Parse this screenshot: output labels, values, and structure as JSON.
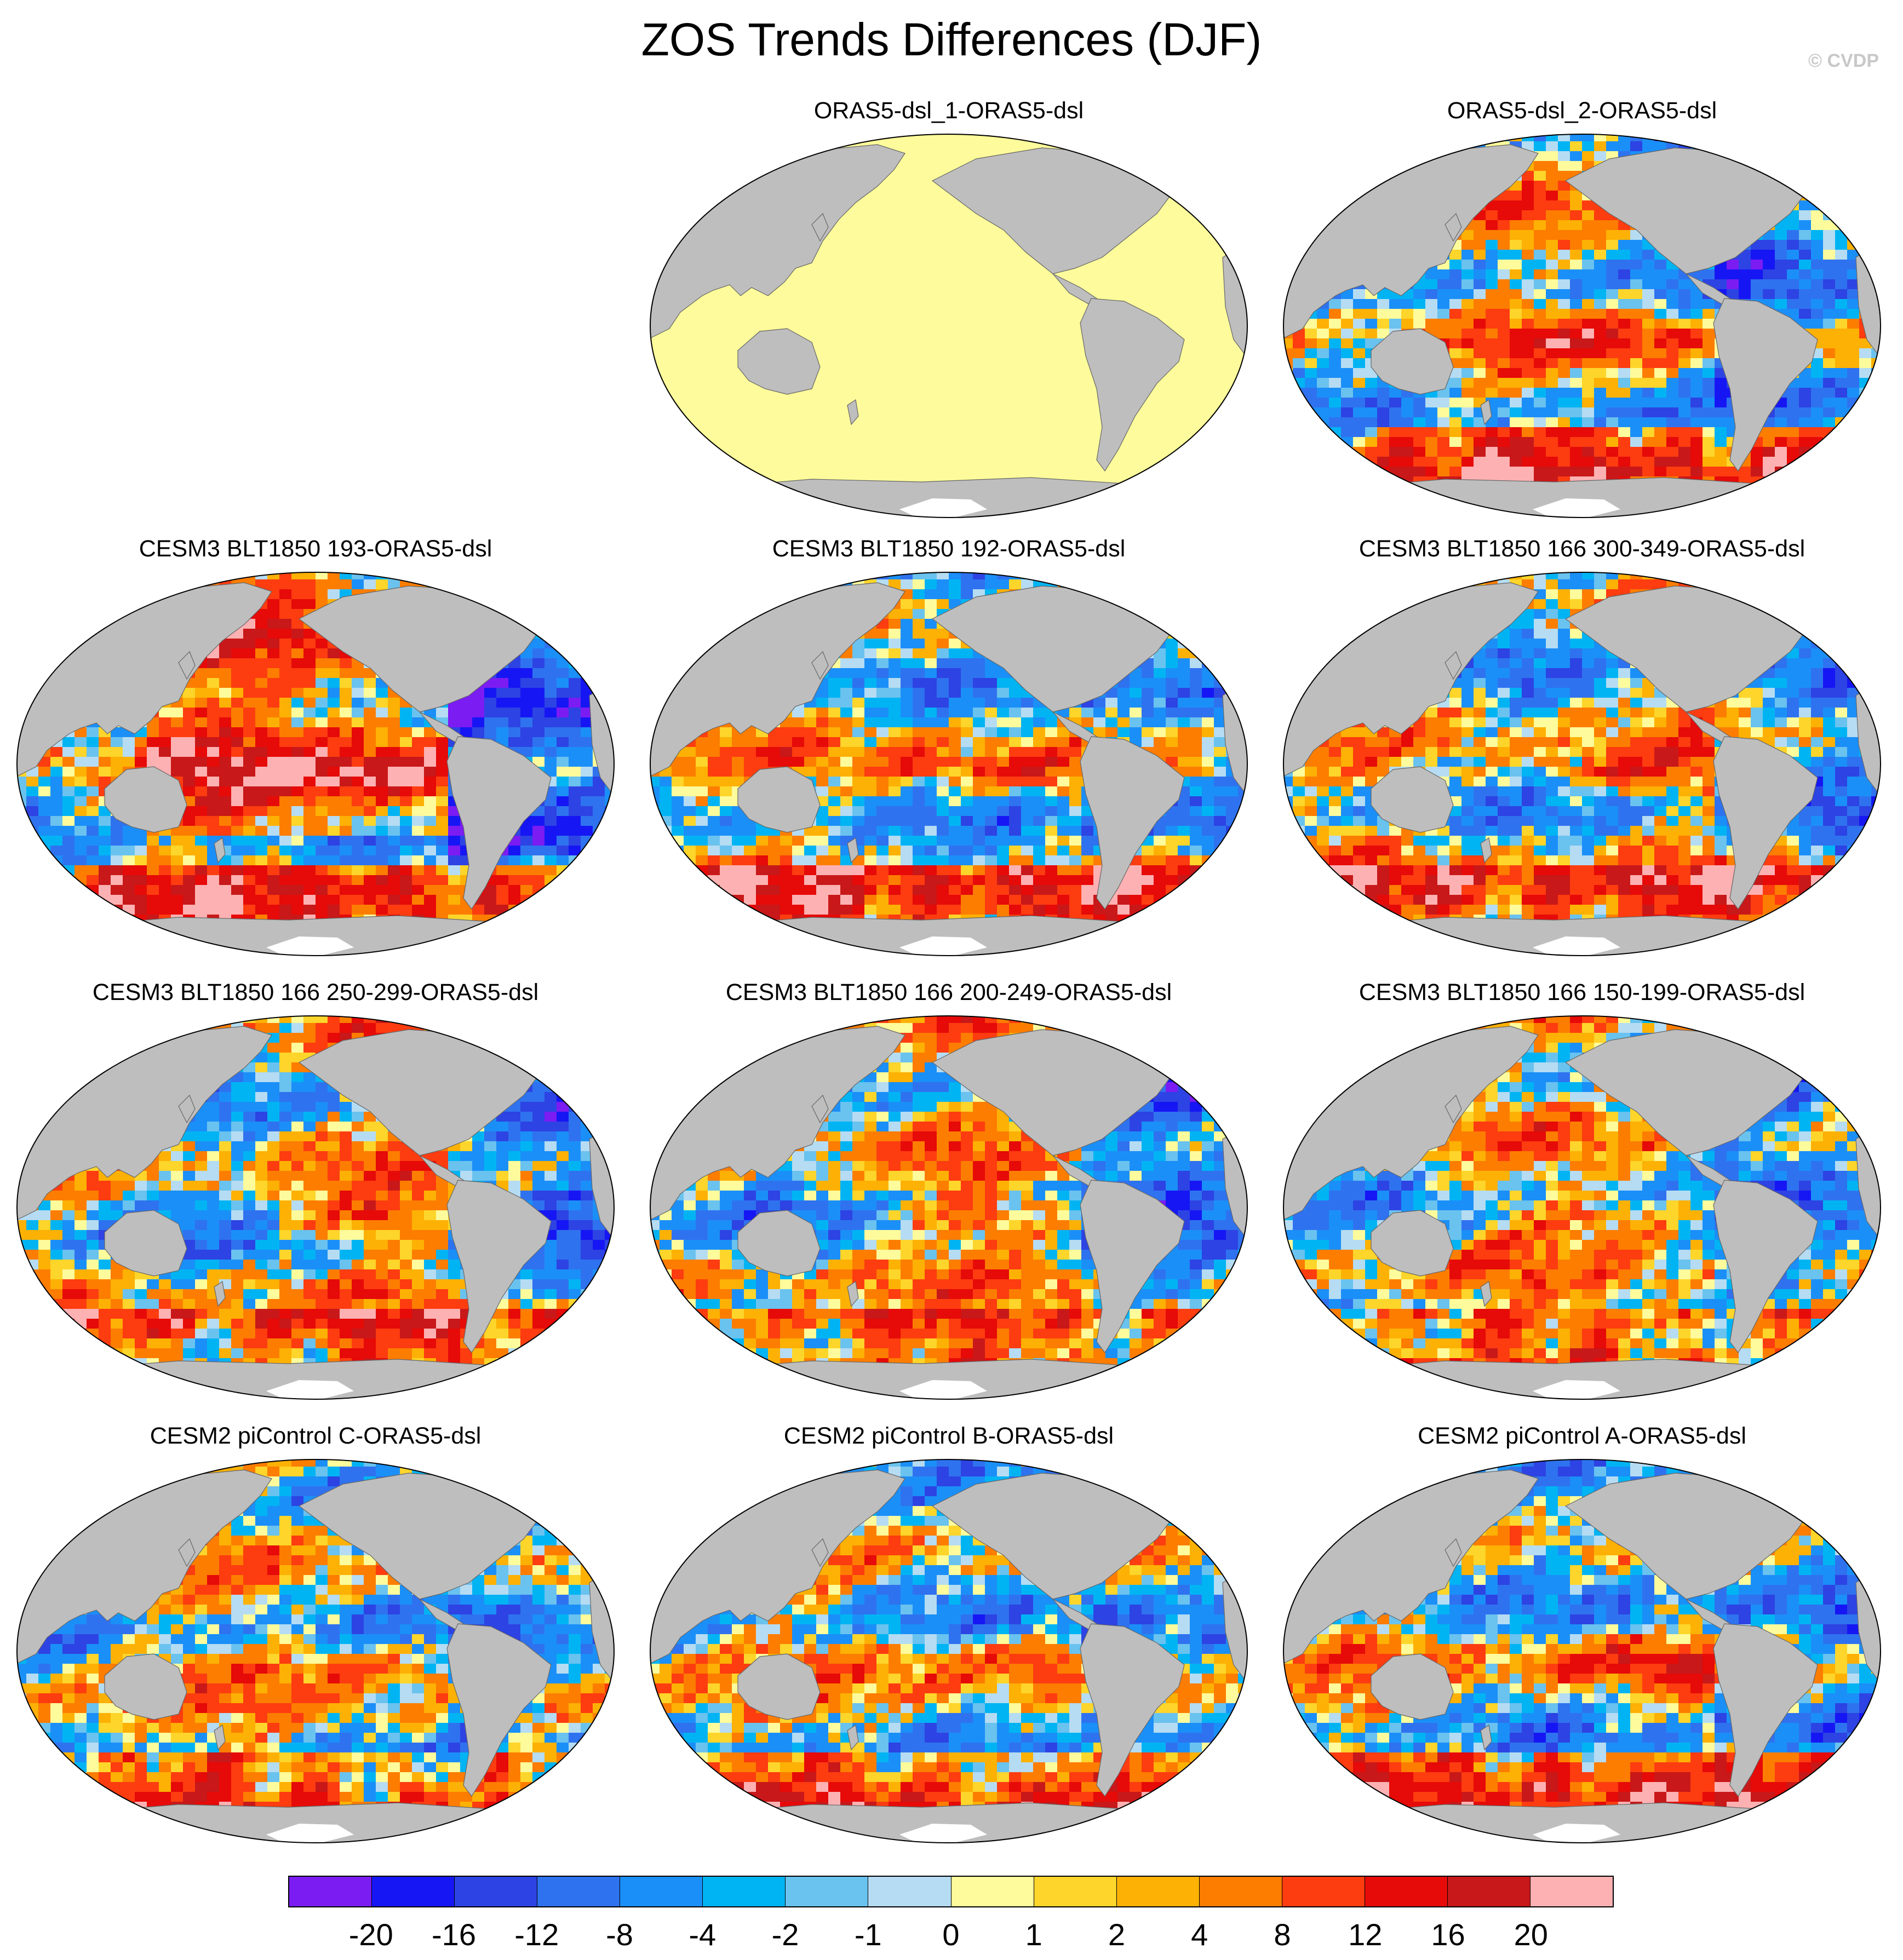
{
  "title": "ZOS Trends Differences (DJF)",
  "credit": "© CVDP",
  "colors": {
    "land": "#bebebe",
    "background": "#ffffff",
    "uniform_fill": "#fdfb9b"
  },
  "colorbar": {
    "colors": [
      "#7b1cf3",
      "#1616f4",
      "#2d43e3",
      "#2f72ef",
      "#1b8ff8",
      "#00b4f4",
      "#6ac2ef",
      "#b5dcf2",
      "#fdfb9b",
      "#fed52a",
      "#fdb104",
      "#fd7d00",
      "#fd3c10",
      "#e60a08",
      "#c81819",
      "#fdb1b2"
    ],
    "labels": [
      "-20",
      "-16",
      "-12",
      "-8",
      "-4",
      "-2",
      "-1",
      "0",
      "1",
      "2",
      "4",
      "8",
      "12",
      "16",
      "20"
    ]
  },
  "panels": [
    {
      "title": "ORAS5-dsl_1-ORAS5-dsl",
      "pattern": "uniform"
    },
    {
      "title": "ORAS5-dsl_2-ORAS5-dsl",
      "pattern": "mixed"
    },
    {
      "title": "CESM3 BLT1850 193-ORAS5-dsl",
      "pattern": "warm-pacific"
    },
    {
      "title": "CESM3 BLT1850 192-ORAS5-dsl",
      "pattern": "mixed"
    },
    {
      "title": "CESM3 BLT1850 166 300-349-ORAS5-dsl",
      "pattern": "mixed"
    },
    {
      "title": "CESM3 BLT1850 166 250-299-ORAS5-dsl",
      "pattern": "mixed"
    },
    {
      "title": "CESM3 BLT1850 166 200-249-ORAS5-dsl",
      "pattern": "mixed"
    },
    {
      "title": "CESM3 BLT1850 166 150-199-ORAS5-dsl",
      "pattern": "mixed"
    },
    {
      "title": "CESM2 piControl C-ORAS5-dsl",
      "pattern": "mixed"
    },
    {
      "title": "CESM2 piControl B-ORAS5-dsl",
      "pattern": "mixed"
    },
    {
      "title": "CESM2 piControl A-ORAS5-dsl",
      "pattern": "mixed"
    }
  ]
}
